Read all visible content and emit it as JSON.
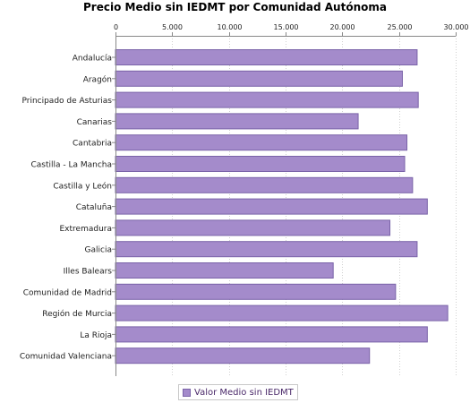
{
  "chart_data": {
    "type": "bar",
    "orientation": "horizontal",
    "title": "Precio Medio sin IEDMT por Comunidad Autónoma",
    "xlabel": "",
    "ylabel": "",
    "xlim": [
      0,
      30000
    ],
    "ticks": [
      "0",
      "5.000",
      "10.000",
      "15.000",
      "20.000",
      "25.000",
      "30.000"
    ],
    "tick_values": [
      0,
      5000,
      10000,
      15000,
      20000,
      25000,
      30000
    ],
    "axis_position": "top",
    "grid": true,
    "legend_position": "bottom",
    "categories": [
      "Andalucía",
      "Aragón",
      "Principado de Asturias",
      "Canarias",
      "Cantabria",
      "Castilla - La Mancha",
      "Castilla y León",
      "Cataluña",
      "Extremadura",
      "Galicia",
      "Illes Balears",
      "Comunidad de Madrid",
      "Región de Murcia",
      "La Rioja",
      "Comunidad Valenciana"
    ],
    "series": [
      {
        "name": "Valor Medio sin IEDMT",
        "color": "#a48bcb",
        "values": [
          26600,
          25300,
          26700,
          21400,
          25700,
          25500,
          26200,
          27500,
          24200,
          26600,
          19200,
          24700,
          29300,
          27500,
          22400
        ]
      }
    ]
  }
}
